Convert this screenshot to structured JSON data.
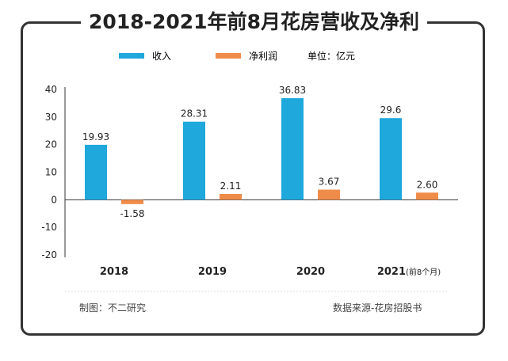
{
  "title": "2018-2021年前8月花房营收及净利",
  "unit_note": "单位：亿元",
  "footer_left": "制图：不二研究",
  "footer_right": "数据来源-花房招股书",
  "colors": {
    "revenue": "#1ea8dc",
    "profit": "#f08c4a",
    "axis": "#333333",
    "text": "#222222"
  },
  "chart_data": {
    "type": "bar",
    "title": "2018-2021年前8月花房营收及净利",
    "categories": [
      "2018",
      "2019",
      "2020",
      "2021"
    ],
    "category_suffix": [
      "",
      "",
      "",
      "(前8个月)"
    ],
    "series": [
      {
        "name": "收入",
        "values": [
          19.93,
          28.31,
          36.83,
          29.6
        ],
        "labels": [
          "19.93",
          "28.31",
          "36.83",
          "29.6"
        ]
      },
      {
        "name": "净利润",
        "values": [
          -1.58,
          2.11,
          3.67,
          2.6
        ],
        "labels": [
          "-1.58",
          "2.11",
          "3.67",
          "2.60"
        ]
      }
    ],
    "ylim": [
      -20,
      40
    ],
    "yticks": [
      40,
      30,
      20,
      10,
      0,
      -10,
      -20
    ],
    "legend_position": "top",
    "grid": false
  }
}
